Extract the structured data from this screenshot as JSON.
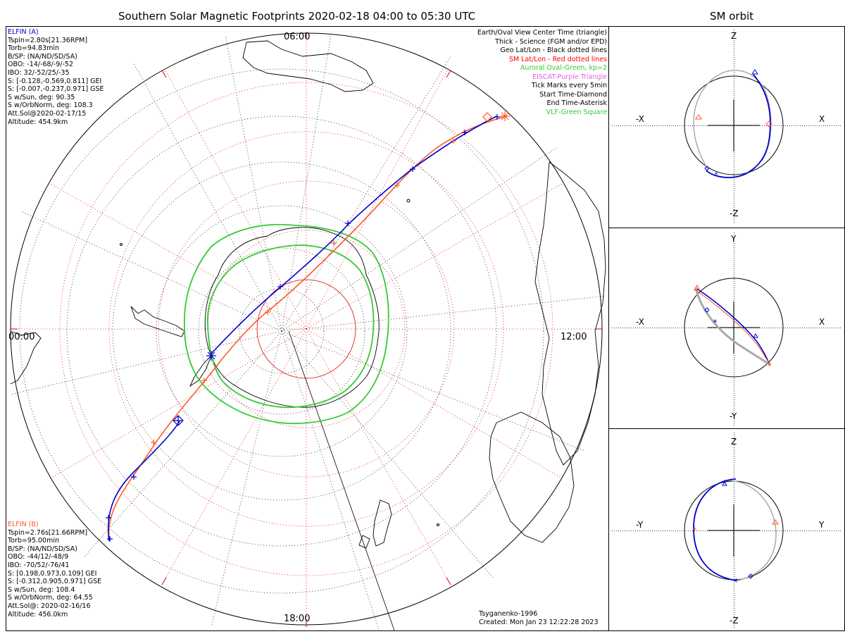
{
  "title": "Southern Solar Magnetic Footprints 2020-02-18 04:00 to 05:30 UTC",
  "orbit_title": "SM orbit",
  "hour_labels": {
    "top": "06:00",
    "left": "00:00",
    "right": "12:00",
    "bottom": "18:00"
  },
  "sat_a": {
    "name": "ELFIN (A)",
    "color": "#0000cc",
    "lines": [
      "Tspin=2.80s[21.36RPM]",
      "Torb=94.83min",
      "B/SP: (NA/ND/SD/SA)",
      "OBO: -14/-68/-9/-52",
      "IBO: 32/-52/25/-35",
      "S: [-0.128,-0.569,0.811] GEI",
      "S: [-0.007,-0.237,0.971] GSE",
      "S w/Sun, deg: 90.35",
      "S w/OrbNorm, deg: 108.3",
      "Att.Sol@2020-02-17/15",
      "Altitude: 454.9km"
    ]
  },
  "sat_b": {
    "name": "ELFIN (B)",
    "color": "#ff5a28",
    "lines": [
      "Tspin=2.76s[21.66RPM]",
      "Torb=95.00min",
      "B/SP: (NA/ND/SD/SA)",
      "OBO: -44/12/-48/9",
      "IBO: -70/52/-76/41",
      "S: [0.198,0.973,0.109] GEI",
      "S: [-0.312,0.905,0.971] GSE",
      "S w/Sun, deg: 108.4",
      "S w/OrbNorm, deg: 64.55",
      "Att.Sol@: 2020-02-16/16",
      "Altitude: 456.0km"
    ]
  },
  "legend": [
    {
      "text": "Earth/Oval View Center Time (triangle)",
      "color": "#000000"
    },
    {
      "text": "Thick - Science (FGM and/or EPD)",
      "color": "#000000"
    },
    {
      "text": "Geo Lat/Lon - Black dotted lines",
      "color": "#000000"
    },
    {
      "text": "SM Lat/Lon - Red dotted lines",
      "color": "#ff0000"
    },
    {
      "text": "Auroral Oval-Green, kp=2",
      "color": "#33cc33"
    },
    {
      "text": "EISCAT-Purple Triangle",
      "color": "#dd66dd"
    },
    {
      "text": "Tick Marks every 5min",
      "color": "#000000"
    },
    {
      "text": "Start Time-Diamond",
      "color": "#000000"
    },
    {
      "text": "End Time-Asterisk",
      "color": "#000000"
    },
    {
      "text": "VLF-Green Square",
      "color": "#33cc33"
    }
  ],
  "model": "Tsyganenko-1996",
  "created": "Created: Mon Jan 23 12:22:28 2023",
  "orbit_panels": [
    {
      "top": "Z",
      "bottom": "-Z",
      "left": "-X",
      "right": "X"
    },
    {
      "top": "Y",
      "bottom": "-Y",
      "left": "-X",
      "right": "X"
    },
    {
      "top": "Z",
      "bottom": "-Z",
      "left": "-Y",
      "right": "Y"
    }
  ]
}
